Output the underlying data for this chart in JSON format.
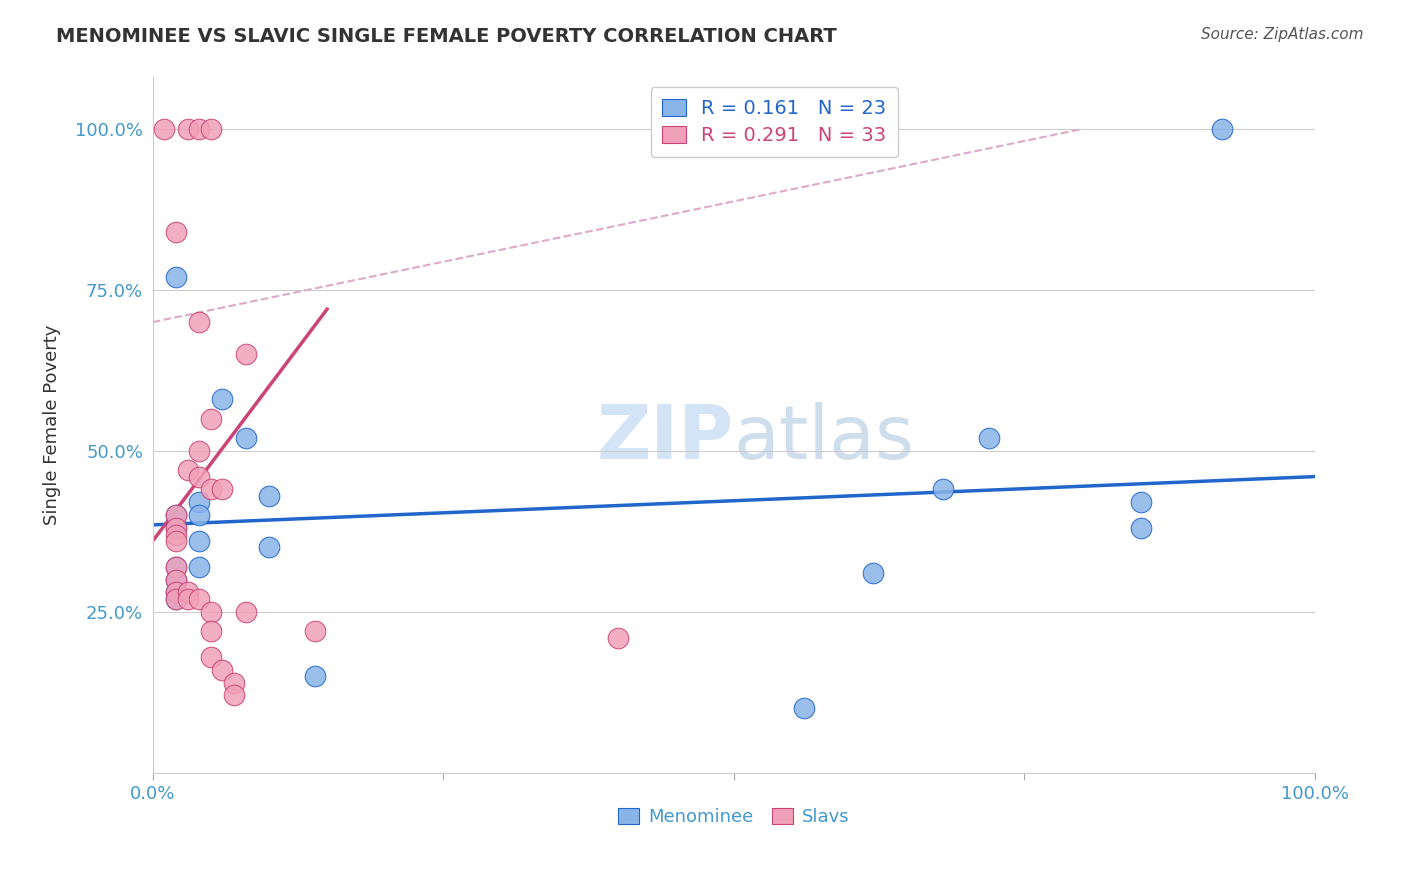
{
  "title": "MENOMINEE VS SLAVIC SINGLE FEMALE POVERTY CORRELATION CHART",
  "source": "Source: ZipAtlas.com",
  "ylabel": "Single Female Poverty",
  "legend_blue_R": "0.161",
  "legend_blue_N": "23",
  "legend_pink_R": "0.291",
  "legend_pink_N": "33",
  "legend_blue_label": "Menominee",
  "legend_pink_label": "Slavs",
  "blue_points": [
    [
      0.02,
      0.77
    ],
    [
      0.04,
      0.42
    ],
    [
      0.06,
      0.58
    ],
    [
      0.08,
      0.52
    ],
    [
      0.02,
      0.4
    ],
    [
      0.02,
      0.38
    ],
    [
      0.02,
      0.32
    ],
    [
      0.02,
      0.3
    ],
    [
      0.02,
      0.28
    ],
    [
      0.02,
      0.27
    ],
    [
      0.04,
      0.4
    ],
    [
      0.04,
      0.36
    ],
    [
      0.04,
      0.32
    ],
    [
      0.1,
      0.43
    ],
    [
      0.1,
      0.35
    ],
    [
      0.14,
      0.15
    ],
    [
      0.56,
      0.1
    ],
    [
      0.62,
      0.31
    ],
    [
      0.68,
      0.44
    ],
    [
      0.72,
      0.52
    ],
    [
      0.85,
      0.42
    ],
    [
      0.85,
      0.38
    ],
    [
      0.92,
      1.0
    ]
  ],
  "pink_points": [
    [
      0.01,
      1.0
    ],
    [
      0.03,
      1.0
    ],
    [
      0.04,
      1.0
    ],
    [
      0.05,
      1.0
    ],
    [
      0.02,
      0.84
    ],
    [
      0.04,
      0.7
    ],
    [
      0.08,
      0.65
    ],
    [
      0.05,
      0.55
    ],
    [
      0.04,
      0.5
    ],
    [
      0.03,
      0.47
    ],
    [
      0.04,
      0.46
    ],
    [
      0.05,
      0.44
    ],
    [
      0.06,
      0.44
    ],
    [
      0.02,
      0.4
    ],
    [
      0.02,
      0.38
    ],
    [
      0.02,
      0.37
    ],
    [
      0.02,
      0.36
    ],
    [
      0.02,
      0.32
    ],
    [
      0.02,
      0.3
    ],
    [
      0.02,
      0.28
    ],
    [
      0.02,
      0.27
    ],
    [
      0.03,
      0.28
    ],
    [
      0.03,
      0.27
    ],
    [
      0.04,
      0.27
    ],
    [
      0.05,
      0.25
    ],
    [
      0.05,
      0.22
    ],
    [
      0.05,
      0.18
    ],
    [
      0.06,
      0.16
    ],
    [
      0.07,
      0.14
    ],
    [
      0.07,
      0.12
    ],
    [
      0.08,
      0.25
    ],
    [
      0.14,
      0.22
    ],
    [
      0.4,
      0.21
    ]
  ],
  "blue_line": [
    [
      0.0,
      0.385
    ],
    [
      1.0,
      0.46
    ]
  ],
  "pink_line": [
    [
      0.0,
      0.36
    ],
    [
      0.15,
      0.72
    ]
  ],
  "diag_line": [
    [
      0.0,
      0.7
    ],
    [
      0.8,
      1.0
    ]
  ],
  "blue_color": "#89b4e8",
  "pink_color": "#f0a0b8",
  "blue_line_color": "#2266cc",
  "pink_line_color": "#cc4477",
  "diag_color": "#ddaacc",
  "xlim": [
    0.0,
    1.0
  ],
  "ylim": [
    0.0,
    1.08
  ],
  "background": "#ffffff",
  "grid_color": "#cccccc"
}
